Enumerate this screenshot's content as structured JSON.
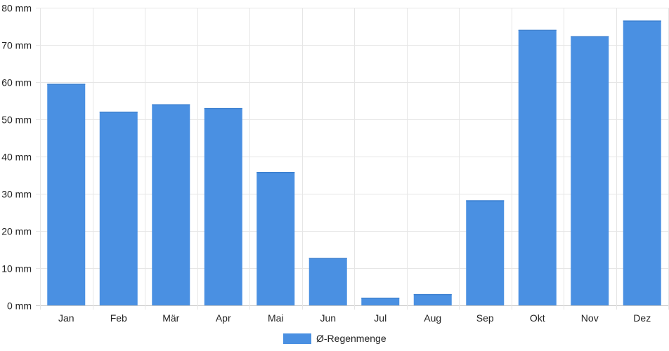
{
  "chart_data": {
    "type": "bar",
    "categories": [
      "Jan",
      "Feb",
      "Mär",
      "Apr",
      "Mai",
      "Jun",
      "Jul",
      "Aug",
      "Sep",
      "Okt",
      "Nov",
      "Dez"
    ],
    "series": [
      {
        "name": "Ø-Regenmenge",
        "color": "#4a90e2",
        "values": [
          59.5,
          52,
          54,
          53,
          35.8,
          12.7,
          2,
          3,
          28.2,
          74,
          72.3,
          76.5
        ]
      }
    ],
    "ylim": [
      0,
      80
    ],
    "yticks": [
      "0 mm",
      "10 mm",
      "20 mm",
      "30 mm",
      "40 mm",
      "50 mm",
      "60 mm",
      "70 mm",
      "80 mm"
    ],
    "ytick_values": [
      0,
      10,
      20,
      30,
      40,
      50,
      60,
      70,
      80
    ],
    "grid": true,
    "legend_position": "bottom"
  }
}
